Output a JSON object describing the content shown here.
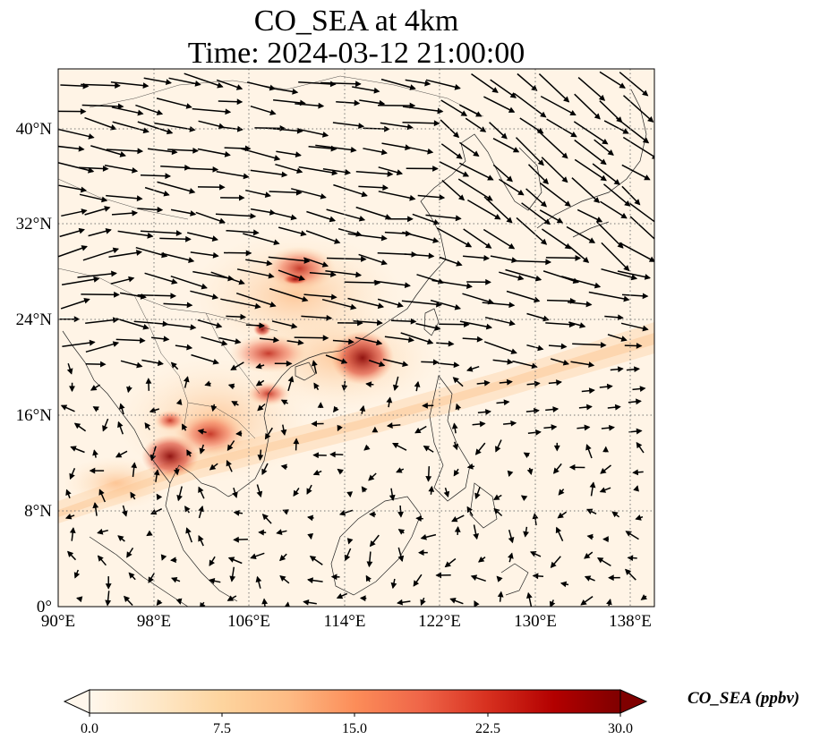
{
  "title": {
    "line1": "CO_SEA at 4km",
    "line2": "Time: 2024-03-12 21:00:00"
  },
  "map": {
    "lon_range": [
      90,
      140
    ],
    "lat_range": [
      0,
      45
    ],
    "xtick_labels": [
      "90°E",
      "98°E",
      "106°E",
      "114°E",
      "122°E",
      "130°E",
      "138°E"
    ],
    "ytick_labels": [
      "0°",
      "8°N",
      "16°N",
      "24°N",
      "32°N",
      "40°N"
    ],
    "gridlines": true,
    "gridline_style": "dotted"
  },
  "colorbar": {
    "label": "CO_SEA (ppbv)",
    "tick_labels": [
      "0.0",
      "7.5",
      "15.0",
      "22.5",
      "30.0"
    ],
    "range": [
      0,
      30
    ],
    "extend": "both",
    "colormap": "OrRd",
    "colors": [
      "#fff7ec",
      "#fee8c8",
      "#fdd49e",
      "#fdbb84",
      "#fc8d59",
      "#ef6548",
      "#d7301f",
      "#b30000",
      "#7f0000"
    ]
  },
  "wind": {
    "arrow_color": "#000000"
  }
}
